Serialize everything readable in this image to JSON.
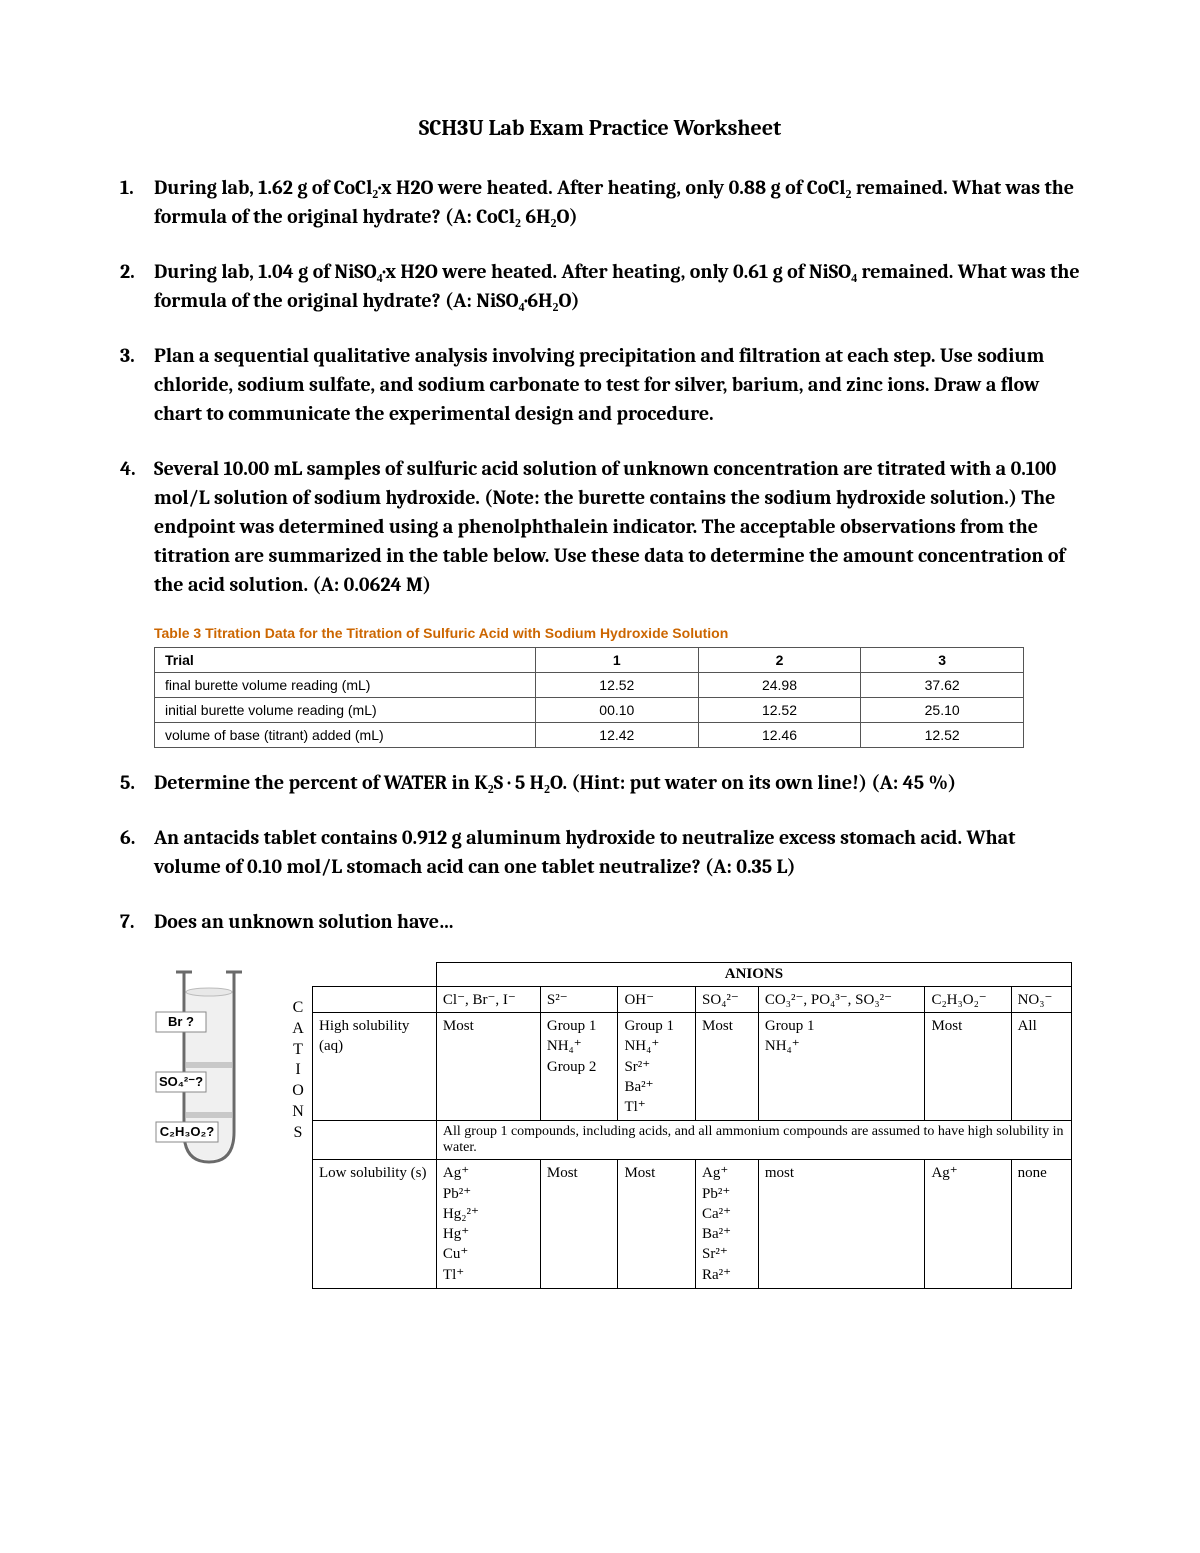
{
  "title": "SCH3U Lab Exam Practice Worksheet",
  "questions": {
    "q1": {
      "num": "1.",
      "text": "During lab, 1.62 g of CoCl₂·x H2O were heated. After heating, only 0.88 g of CoCl₂ remained. What was the formula of the original hydrate? (A: CoCl₂ 6H₂O)"
    },
    "q2": {
      "num": "2.",
      "text": "During lab, 1.04 g of NiSO₄·x H2O were heated. After heating, only 0.61 g of NiSO₄ remained. What was the formula of the original hydrate? (A: NiSO₄·6H₂O)"
    },
    "q3": {
      "num": "3.",
      "text": "Plan a sequential qualitative analysis involving precipitation and filtration at each step. Use sodium chloride, sodium sulfate, and sodium carbonate to test for silver, barium, and zinc ions. Draw a flow chart to communicate the experimental design and procedure."
    },
    "q4": {
      "num": "4.",
      "text": "Several 10.00 mL samples of sulfuric acid solution of unknown concentration are titrated with a 0.100 mol/L solution of sodium hydroxide. (Note: the burette contains the sodium hydroxide solution.) The endpoint was determined using a phenolphthalein indicator. The acceptable observations from the titration are summarized in the table below. Use these data to determine the amount concentration of the acid solution. (A: 0.0624 M)"
    },
    "q5": {
      "num": "5.",
      "text": "Determine the percent of WATER in K₂S · 5 H₂O. (Hint: put water on its own line!) (A: 45 %)"
    },
    "q6": {
      "num": "6.",
      "text": "An antacids tablet contains 0.912 g aluminum hydroxide to neutralize excess stomach acid. What volume of 0.10 mol/L stomach acid can one tablet neutralize? (A: 0.35 L)"
    },
    "q7": {
      "num": "7.",
      "text": "Does an unknown solution have…"
    }
  },
  "titration": {
    "caption": "Table 3  Titration Data for the Titration of Sulfuric Acid with Sodium Hydroxide Solution",
    "caption_color": "#cc6600",
    "border_color": "#555555",
    "header": {
      "label": "Trial",
      "c1": "1",
      "c2": "2",
      "c3": "3"
    },
    "rows": [
      {
        "label": "final burette volume reading (mL)",
        "c1": "12.52",
        "c2": "24.98",
        "c3": "37.62"
      },
      {
        "label": "initial burette volume reading (mL)",
        "c1": "00.10",
        "c2": "12.52",
        "c3": "25.10"
      },
      {
        "label": "volume of base (titrant) added (mL)",
        "c1": "12.42",
        "c2": "12.46",
        "c3": "12.52"
      }
    ]
  },
  "tube": {
    "labels": {
      "top": "Br ?",
      "mid": "SO₄²⁻?",
      "bot": "C₂H₃O₂?"
    },
    "outline_color": "#6a6a6a",
    "water_fill": "#f0f0f0",
    "mark_fill": "#c8c8c8"
  },
  "cations_label": "C\nA\nT\nI\nO\nN\nS",
  "solubility": {
    "anions_title": "ANIONS",
    "col_headers": [
      "",
      "Cl⁻, Br⁻, I⁻",
      "S²⁻",
      "OH⁻",
      "SO₄²⁻",
      "CO₃²⁻, PO₄³⁻, SO₃²⁻",
      "C₂H₃O₂⁻",
      "NO₃⁻"
    ],
    "high": {
      "label": "High solubility (aq)",
      "cells": [
        "Most",
        "Group 1\nNH₄⁺\nGroup 2",
        "Group 1\nNH₄⁺\nSr²⁺\nBa²⁺\nTl⁺",
        "Most",
        "Group 1\nNH₄⁺",
        "Most",
        "All"
      ]
    },
    "note": "All group 1 compounds, including acids, and all ammonium compounds are assumed to have high solubility in water.",
    "low": {
      "label": "Low solubility (s)",
      "cells": [
        "Ag⁺\nPb²⁺\nHg₂²⁺\nHg⁺\nCu⁺\nTl⁺",
        "Most",
        "Most",
        "Ag⁺\nPb²⁺\nCa²⁺\nBa²⁺\nSr²⁺\nRa²⁺",
        "most",
        "Ag⁺",
        "none"
      ]
    }
  }
}
